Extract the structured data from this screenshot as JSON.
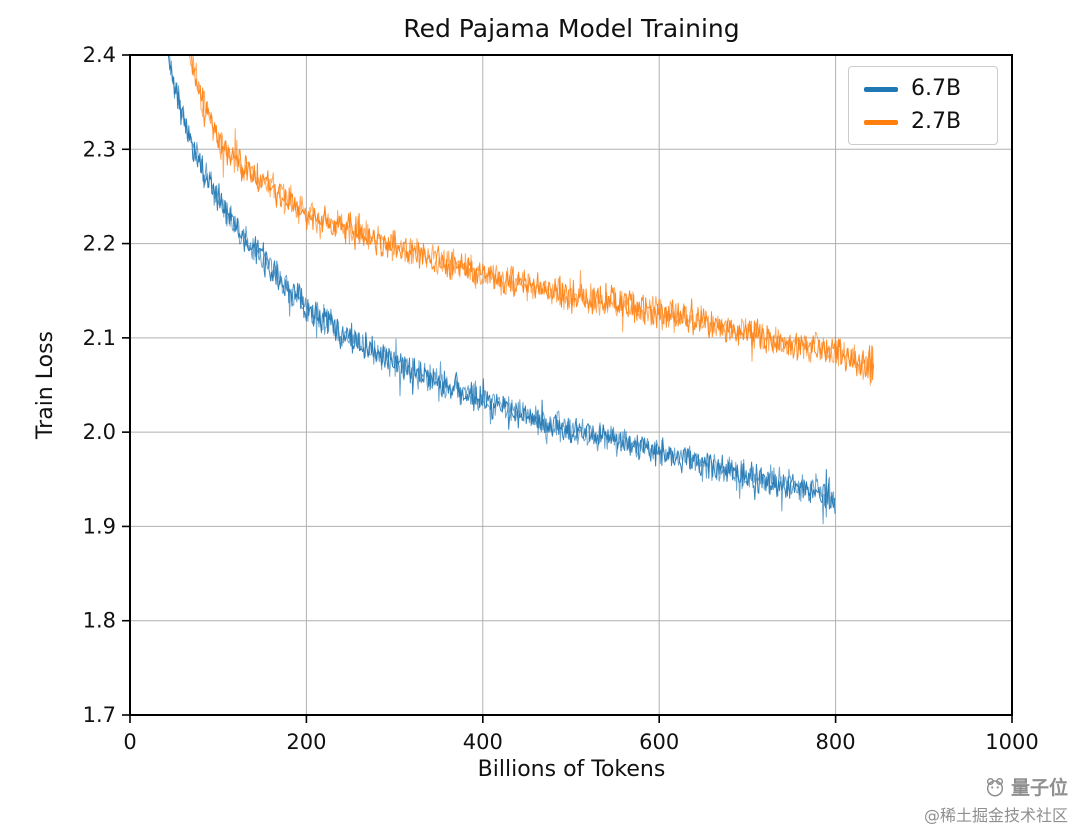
{
  "chart_data": {
    "type": "line",
    "title": "Red Pajama Model Training",
    "xlabel": "Billions of Tokens",
    "ylabel": "Train Loss",
    "xlim": [
      0,
      1000
    ],
    "ylim": [
      1.7,
      2.4
    ],
    "xticks": [
      0,
      200,
      400,
      600,
      800,
      1000
    ],
    "yticks": [
      1.7,
      1.8,
      1.9,
      2.0,
      2.1,
      2.2,
      2.3,
      2.4
    ],
    "grid": true,
    "legend_position": "upper right",
    "series": [
      {
        "name": "6.7B",
        "color": "#1f77b4",
        "noise": 0.014,
        "x": [
          28,
          36,
          45,
          55,
          70,
          85,
          100,
          125,
          150,
          175,
          200,
          250,
          300,
          350,
          400,
          450,
          500,
          550,
          600,
          650,
          700,
          750,
          800
        ],
        "y": [
          2.62,
          2.46,
          2.392,
          2.352,
          2.305,
          2.272,
          2.247,
          2.213,
          2.187,
          2.158,
          2.133,
          2.098,
          2.073,
          2.052,
          2.034,
          2.018,
          2.003,
          1.993,
          1.979,
          1.965,
          1.953,
          1.944,
          1.932
        ]
      },
      {
        "name": "2.7B",
        "color": "#ff7f0e",
        "noise": 0.014,
        "x": [
          50,
          60,
          70,
          82,
          100,
          125,
          150,
          175,
          200,
          250,
          300,
          350,
          400,
          450,
          500,
          550,
          600,
          650,
          700,
          750,
          800,
          843
        ],
        "y": [
          2.6,
          2.445,
          2.392,
          2.352,
          2.31,
          2.283,
          2.266,
          2.248,
          2.232,
          2.214,
          2.198,
          2.183,
          2.168,
          2.156,
          2.145,
          2.136,
          2.127,
          2.117,
          2.104,
          2.094,
          2.085,
          2.071
        ]
      }
    ]
  },
  "watermark": {
    "brand": "量子位",
    "community": "@稀土掘金技术社区"
  }
}
